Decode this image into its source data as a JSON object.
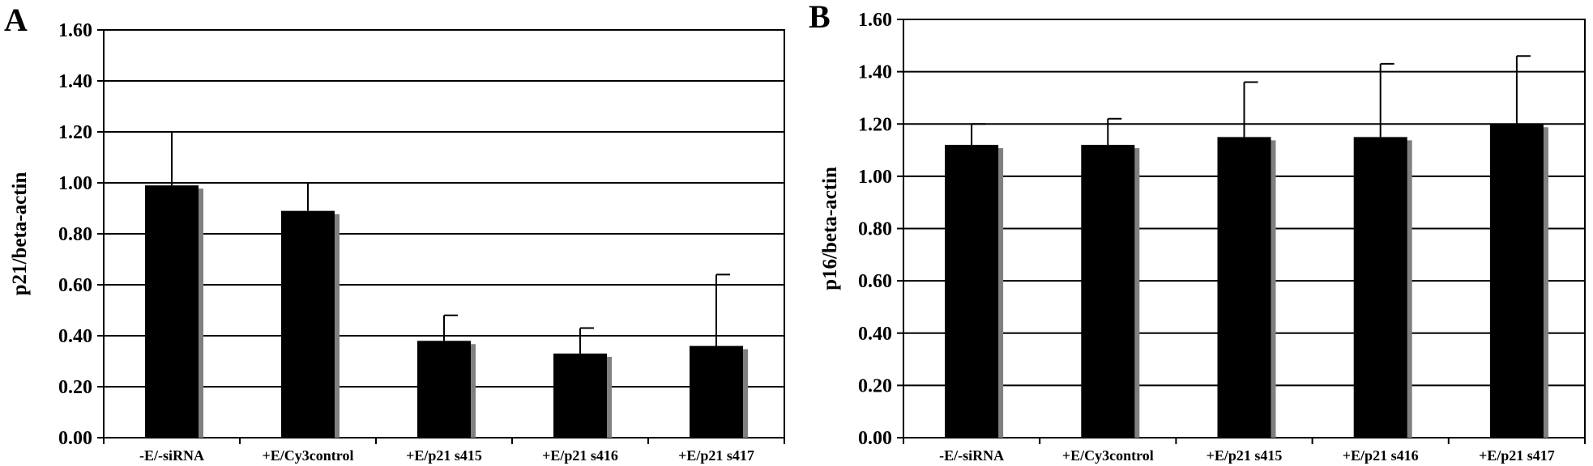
{
  "chart_data": [
    {
      "type": "bar",
      "panel_label": "A",
      "ylabel": "p21/beta-actin",
      "ylim": [
        0,
        1.6
      ],
      "yticks": [
        "0.00",
        "0.20",
        "0.40",
        "0.60",
        "0.80",
        "1.00",
        "1.20",
        "1.40",
        "1.60"
      ],
      "categories": [
        "-E/-siRNA",
        "+E/Cy3control",
        "+E/p21 s415",
        "+E/p21 s416",
        "+E/p21 s417"
      ],
      "values": [
        0.99,
        0.89,
        0.38,
        0.33,
        0.36
      ],
      "error_upper": [
        1.2,
        1.0,
        0.48,
        0.43,
        0.64
      ],
      "grid": true,
      "bar_color": "#000000",
      "shadow_color": "#808080"
    },
    {
      "type": "bar",
      "panel_label": "B",
      "ylabel": "p16/beta-actin",
      "ylim": [
        0,
        1.6
      ],
      "yticks": [
        "0.00",
        "0.20",
        "0.40",
        "0.60",
        "0.80",
        "1.00",
        "1.20",
        "1.40",
        "1.60"
      ],
      "categories": [
        "-E/-siRNA",
        "+E/Cy3control",
        "+E/p21 s415",
        "+E/p21 s416",
        "+E/p21 s417"
      ],
      "values": [
        1.12,
        1.12,
        1.15,
        1.15,
        1.2
      ],
      "error_upper": [
        1.2,
        1.22,
        1.36,
        1.43,
        1.46
      ],
      "grid": true,
      "bar_color": "#000000",
      "shadow_color": "#808080"
    }
  ]
}
